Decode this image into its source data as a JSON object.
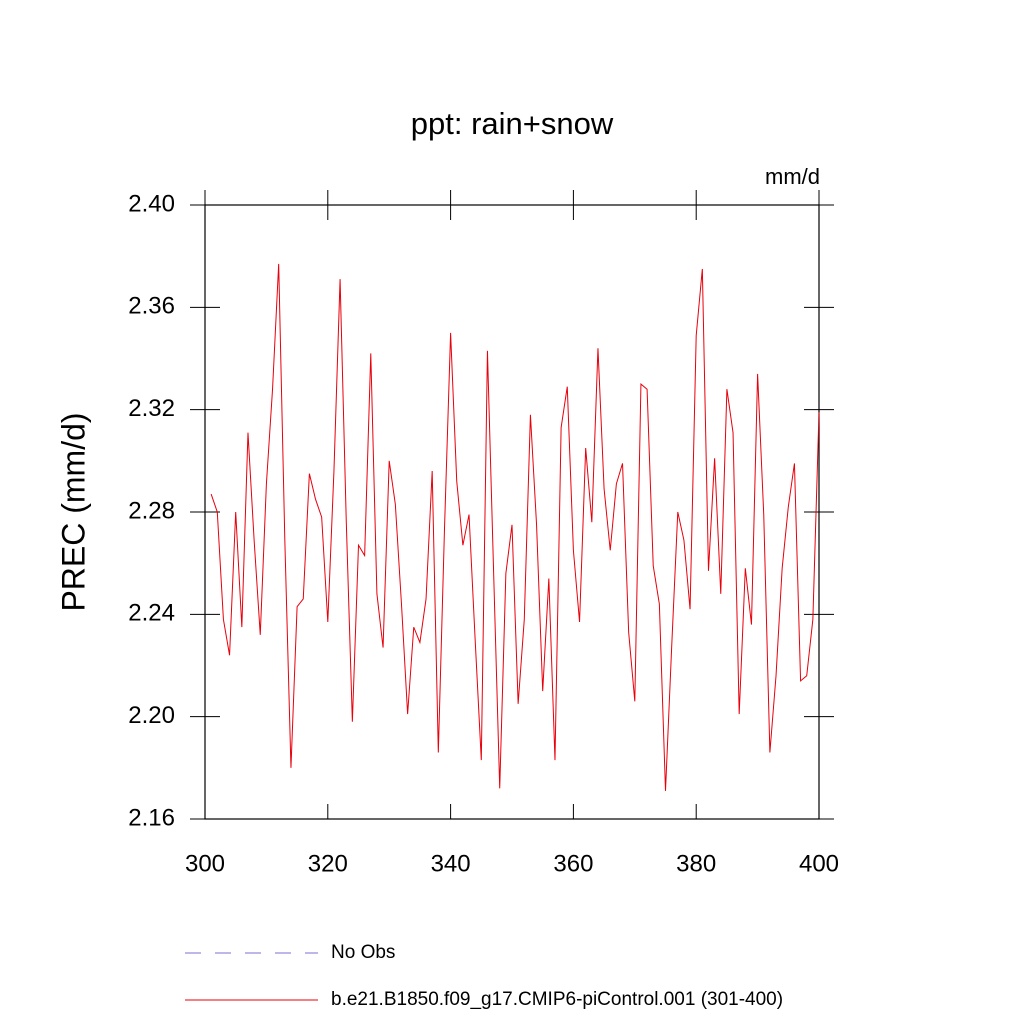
{
  "chart_data": {
    "type": "line",
    "title": "ppt: rain+snow",
    "units": "mm/d",
    "ylabel": "PREC  (mm/d)",
    "x": [
      301,
      302,
      303,
      304,
      305,
      306,
      307,
      308,
      309,
      310,
      311,
      312,
      313,
      314,
      315,
      316,
      317,
      318,
      319,
      320,
      321,
      322,
      323,
      324,
      325,
      326,
      327,
      328,
      329,
      330,
      331,
      332,
      333,
      334,
      335,
      336,
      337,
      338,
      339,
      340,
      341,
      342,
      343,
      344,
      345,
      346,
      347,
      348,
      349,
      350,
      351,
      352,
      353,
      354,
      355,
      356,
      357,
      358,
      359,
      360,
      361,
      362,
      363,
      364,
      365,
      366,
      367,
      368,
      369,
      370,
      371,
      372,
      373,
      374,
      375,
      376,
      377,
      378,
      379,
      380,
      381,
      382,
      383,
      384,
      385,
      386,
      387,
      388,
      389,
      390,
      391,
      392,
      393,
      394,
      395,
      396,
      397,
      398,
      399,
      400
    ],
    "series": [
      {
        "name": "No Obs",
        "color": "#7b6fd6",
        "dash": true
      },
      {
        "name": "b.e21.B1850.f09_g17.CMIP6-piControl.001 (301-400)",
        "color": "#e8000b",
        "dash": false,
        "values": [
          2.287,
          2.28,
          2.238,
          2.224,
          2.28,
          2.235,
          2.311,
          2.269,
          2.232,
          2.291,
          2.328,
          2.377,
          2.269,
          2.18,
          2.243,
          2.246,
          2.295,
          2.285,
          2.278,
          2.237,
          2.296,
          2.371,
          2.277,
          2.198,
          2.267,
          2.263,
          2.342,
          2.248,
          2.227,
          2.3,
          2.283,
          2.244,
          2.201,
          2.235,
          2.229,
          2.246,
          2.296,
          2.186,
          2.273,
          2.35,
          2.292,
          2.267,
          2.279,
          2.23,
          2.183,
          2.343,
          2.257,
          2.172,
          2.256,
          2.275,
          2.205,
          2.238,
          2.318,
          2.275,
          2.21,
          2.254,
          2.183,
          2.313,
          2.329,
          2.265,
          2.237,
          2.305,
          2.276,
          2.344,
          2.289,
          2.265,
          2.291,
          2.299,
          2.233,
          2.206,
          2.33,
          2.328,
          2.259,
          2.244,
          2.171,
          2.227,
          2.28,
          2.269,
          2.242,
          2.349,
          2.375,
          2.257,
          2.301,
          2.248,
          2.328,
          2.311,
          2.201,
          2.258,
          2.236,
          2.334,
          2.279,
          2.186,
          2.216,
          2.258,
          2.282,
          2.299,
          2.214,
          2.216,
          2.238,
          2.319
        ]
      }
    ],
    "xlim": [
      300,
      400
    ],
    "xticks": [
      300,
      320,
      340,
      360,
      380,
      400
    ],
    "ylim": [
      2.16,
      2.4
    ],
    "yticks": [
      {
        "value": 2.16,
        "label": "2.16"
      },
      {
        "value": 2.2,
        "label": "2.20"
      },
      {
        "value": 2.24,
        "label": "2.24"
      },
      {
        "value": 2.28,
        "label": "2.28"
      },
      {
        "value": 2.32,
        "label": "2.32"
      },
      {
        "value": 2.36,
        "label": "2.36"
      },
      {
        "value": 2.4,
        "label": "2.40"
      }
    ]
  }
}
